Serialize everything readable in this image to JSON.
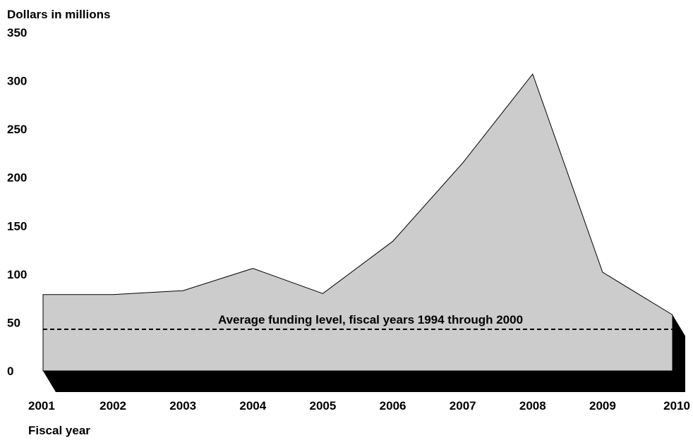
{
  "chart_data": {
    "type": "area",
    "ylabel": "Dollars in millions",
    "xlabel": "Fiscal year",
    "ylim": [
      0,
      350
    ],
    "yticks": [
      0,
      50,
      100,
      150,
      200,
      250,
      300,
      350
    ],
    "categories": [
      "2001",
      "2002",
      "2003",
      "2004",
      "2005",
      "2006",
      "2007",
      "2008",
      "2009",
      "2010"
    ],
    "series": [
      {
        "values": [
          79,
          79,
          83,
          106,
          80,
          134,
          215,
          307,
          102,
          58
        ]
      }
    ],
    "reference_line": {
      "value": 43,
      "label": "Average funding level, fiscal years 1994 through 2000",
      "style": "dashed"
    },
    "colors": {
      "area": "#cccccc",
      "shadow": "#000000",
      "line": "#000000"
    }
  }
}
